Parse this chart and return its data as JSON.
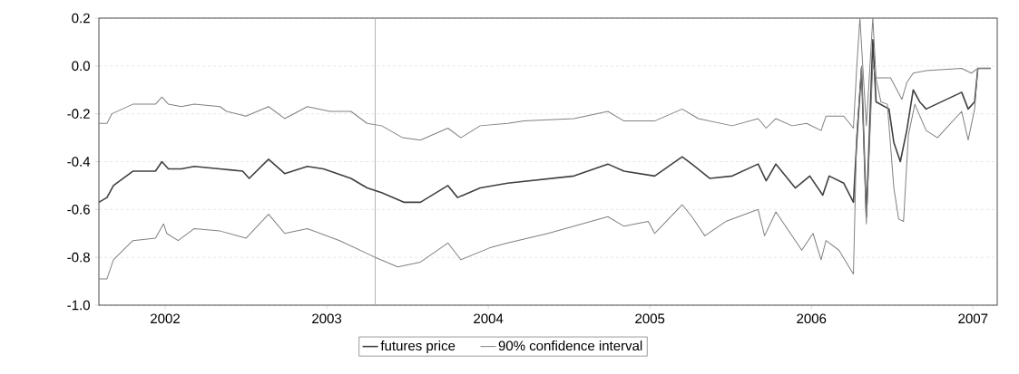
{
  "chart_data": {
    "type": "line",
    "xlim": [
      2001.59,
      2007.15
    ],
    "xticks": [
      2002,
      2003,
      2004,
      2005,
      2006,
      2007
    ],
    "ylim": [
      -1.0,
      0.2
    ],
    "yticks": [
      {
        "value": -1.0,
        "label": "-1.0"
      },
      {
        "value": -0.8,
        "label": "-0.8"
      },
      {
        "value": -0.6,
        "label": "-0.6"
      },
      {
        "value": -0.4,
        "label": "-0.4"
      },
      {
        "value": -0.2,
        "label": "-0.2"
      },
      {
        "value": 0.0,
        "label": "0.0"
      },
      {
        "value": 0.2,
        "label": "0.2"
      }
    ],
    "grid": "y",
    "legend": "bottom",
    "line_style": "solid",
    "marker": "none",
    "ref_lines": [
      {
        "axis": "x",
        "value": 2003.3,
        "color": "#a0a0a0"
      }
    ],
    "series": [
      {
        "name": "futures price",
        "color": "#404040",
        "x": [
          2001.59,
          2001.64,
          2001.68,
          2001.8,
          2001.94,
          2001.98,
          2002.02,
          2002.1,
          2002.18,
          2002.34,
          2002.48,
          2002.52,
          2002.64,
          2002.74,
          2002.88,
          2002.98,
          2003.15,
          2003.25,
          2003.34,
          2003.48,
          2003.58,
          2003.75,
          2003.81,
          2003.95,
          2004.12,
          2004.53,
          2004.74,
          2004.84,
          2005.03,
          2005.2,
          2005.26,
          2005.37,
          2005.51,
          2005.67,
          2005.72,
          2005.78,
          2005.9,
          2005.99,
          2006.07,
          2006.11,
          2006.2,
          2006.26,
          2006.28,
          2006.31,
          2006.34,
          2006.38,
          2006.4,
          2006.48,
          2006.51,
          2006.55,
          2006.59,
          2006.63,
          2006.67,
          2006.71,
          2006.93,
          2006.97,
          2007.01,
          2007.03,
          2007.11
        ],
        "values": [
          -0.57,
          -0.55,
          -0.5,
          -0.44,
          -0.44,
          -0.4,
          -0.43,
          -0.43,
          -0.42,
          -0.43,
          -0.44,
          -0.47,
          -0.39,
          -0.45,
          -0.42,
          -0.43,
          -0.47,
          -0.51,
          -0.53,
          -0.57,
          -0.57,
          -0.5,
          -0.55,
          -0.51,
          -0.49,
          -0.46,
          -0.41,
          -0.44,
          -0.46,
          -0.38,
          -0.41,
          -0.47,
          -0.46,
          -0.41,
          -0.48,
          -0.41,
          -0.51,
          -0.46,
          -0.54,
          -0.46,
          -0.49,
          -0.57,
          -0.32,
          -0.01,
          -0.63,
          0.11,
          -0.15,
          -0.18,
          -0.32,
          -0.4,
          -0.27,
          -0.1,
          -0.15,
          -0.18,
          -0.11,
          -0.18,
          -0.15,
          -0.01,
          -0.01
        ]
      },
      {
        "name": "90% confidence interval",
        "color": "#808080",
        "x": [
          2001.59,
          2001.64,
          2001.67,
          2001.8,
          2001.94,
          2001.98,
          2002.02,
          2002.1,
          2002.18,
          2002.34,
          2002.38,
          2002.5,
          2002.64,
          2002.74,
          2002.88,
          2003.02,
          2003.15,
          2003.25,
          2003.34,
          2003.47,
          2003.58,
          2003.75,
          2003.83,
          2003.95,
          2004.12,
          2004.22,
          2004.53,
          2004.74,
          2004.84,
          2005.03,
          2005.2,
          2005.3,
          2005.51,
          2005.67,
          2005.72,
          2005.78,
          2005.88,
          2005.97,
          2006.06,
          2006.09,
          2006.2,
          2006.26,
          2006.28,
          2006.3,
          2006.34,
          2006.38,
          2006.4,
          2006.49,
          2006.56,
          2006.59,
          2006.63,
          2006.71,
          2006.93,
          2006.99,
          2007.03,
          2007.11
        ],
        "values": [
          -0.24,
          -0.24,
          -0.2,
          -0.16,
          -0.16,
          -0.13,
          -0.16,
          -0.17,
          -0.16,
          -0.17,
          -0.19,
          -0.21,
          -0.17,
          -0.22,
          -0.17,
          -0.19,
          -0.19,
          -0.24,
          -0.25,
          -0.3,
          -0.31,
          -0.26,
          -0.3,
          -0.25,
          -0.24,
          -0.23,
          -0.22,
          -0.19,
          -0.23,
          -0.23,
          -0.18,
          -0.22,
          -0.25,
          -0.22,
          -0.26,
          -0.22,
          -0.25,
          -0.24,
          -0.27,
          -0.21,
          -0.21,
          -0.26,
          -0.01,
          0.2,
          -0.25,
          0.2,
          -0.05,
          -0.05,
          -0.14,
          -0.07,
          -0.03,
          -0.02,
          -0.01,
          -0.03,
          -0.01,
          -0.01
        ]
      },
      {
        "color": "#808080",
        "x": [
          2001.59,
          2001.64,
          2001.68,
          2001.8,
          2001.94,
          2001.99,
          2002.01,
          2002.08,
          2002.18,
          2002.34,
          2002.5,
          2002.64,
          2002.74,
          2002.88,
          2003.08,
          2003.3,
          2003.44,
          2003.58,
          2003.75,
          2003.83,
          2004.01,
          2004.12,
          2004.37,
          2004.74,
          2004.84,
          2004.99,
          2005.03,
          2005.2,
          2005.26,
          2005.34,
          2005.47,
          2005.67,
          2005.71,
          2005.78,
          2005.94,
          2006.01,
          2006.06,
          2006.09,
          2006.17,
          2006.26,
          2006.28,
          2006.31,
          2006.34,
          2006.38,
          2006.43,
          2006.47,
          2006.51,
          2006.54,
          2006.57,
          2006.6,
          2006.64,
          2006.71,
          2006.78,
          2006.93,
          2006.97,
          2007.01,
          2007.03,
          2007.11
        ],
        "values": [
          -0.89,
          -0.89,
          -0.81,
          -0.73,
          -0.72,
          -0.66,
          -0.7,
          -0.73,
          -0.68,
          -0.69,
          -0.72,
          -0.62,
          -0.7,
          -0.68,
          -0.73,
          -0.8,
          -0.84,
          -0.82,
          -0.74,
          -0.81,
          -0.76,
          -0.74,
          -0.7,
          -0.63,
          -0.67,
          -0.65,
          -0.7,
          -0.58,
          -0.63,
          -0.71,
          -0.65,
          -0.6,
          -0.71,
          -0.61,
          -0.77,
          -0.7,
          -0.81,
          -0.73,
          -0.77,
          -0.87,
          -0.29,
          0.0,
          -0.66,
          0.01,
          -0.15,
          -0.16,
          -0.51,
          -0.64,
          -0.65,
          -0.29,
          -0.16,
          -0.27,
          -0.3,
          -0.19,
          -0.31,
          -0.18,
          -0.01,
          -0.01
        ]
      }
    ]
  }
}
